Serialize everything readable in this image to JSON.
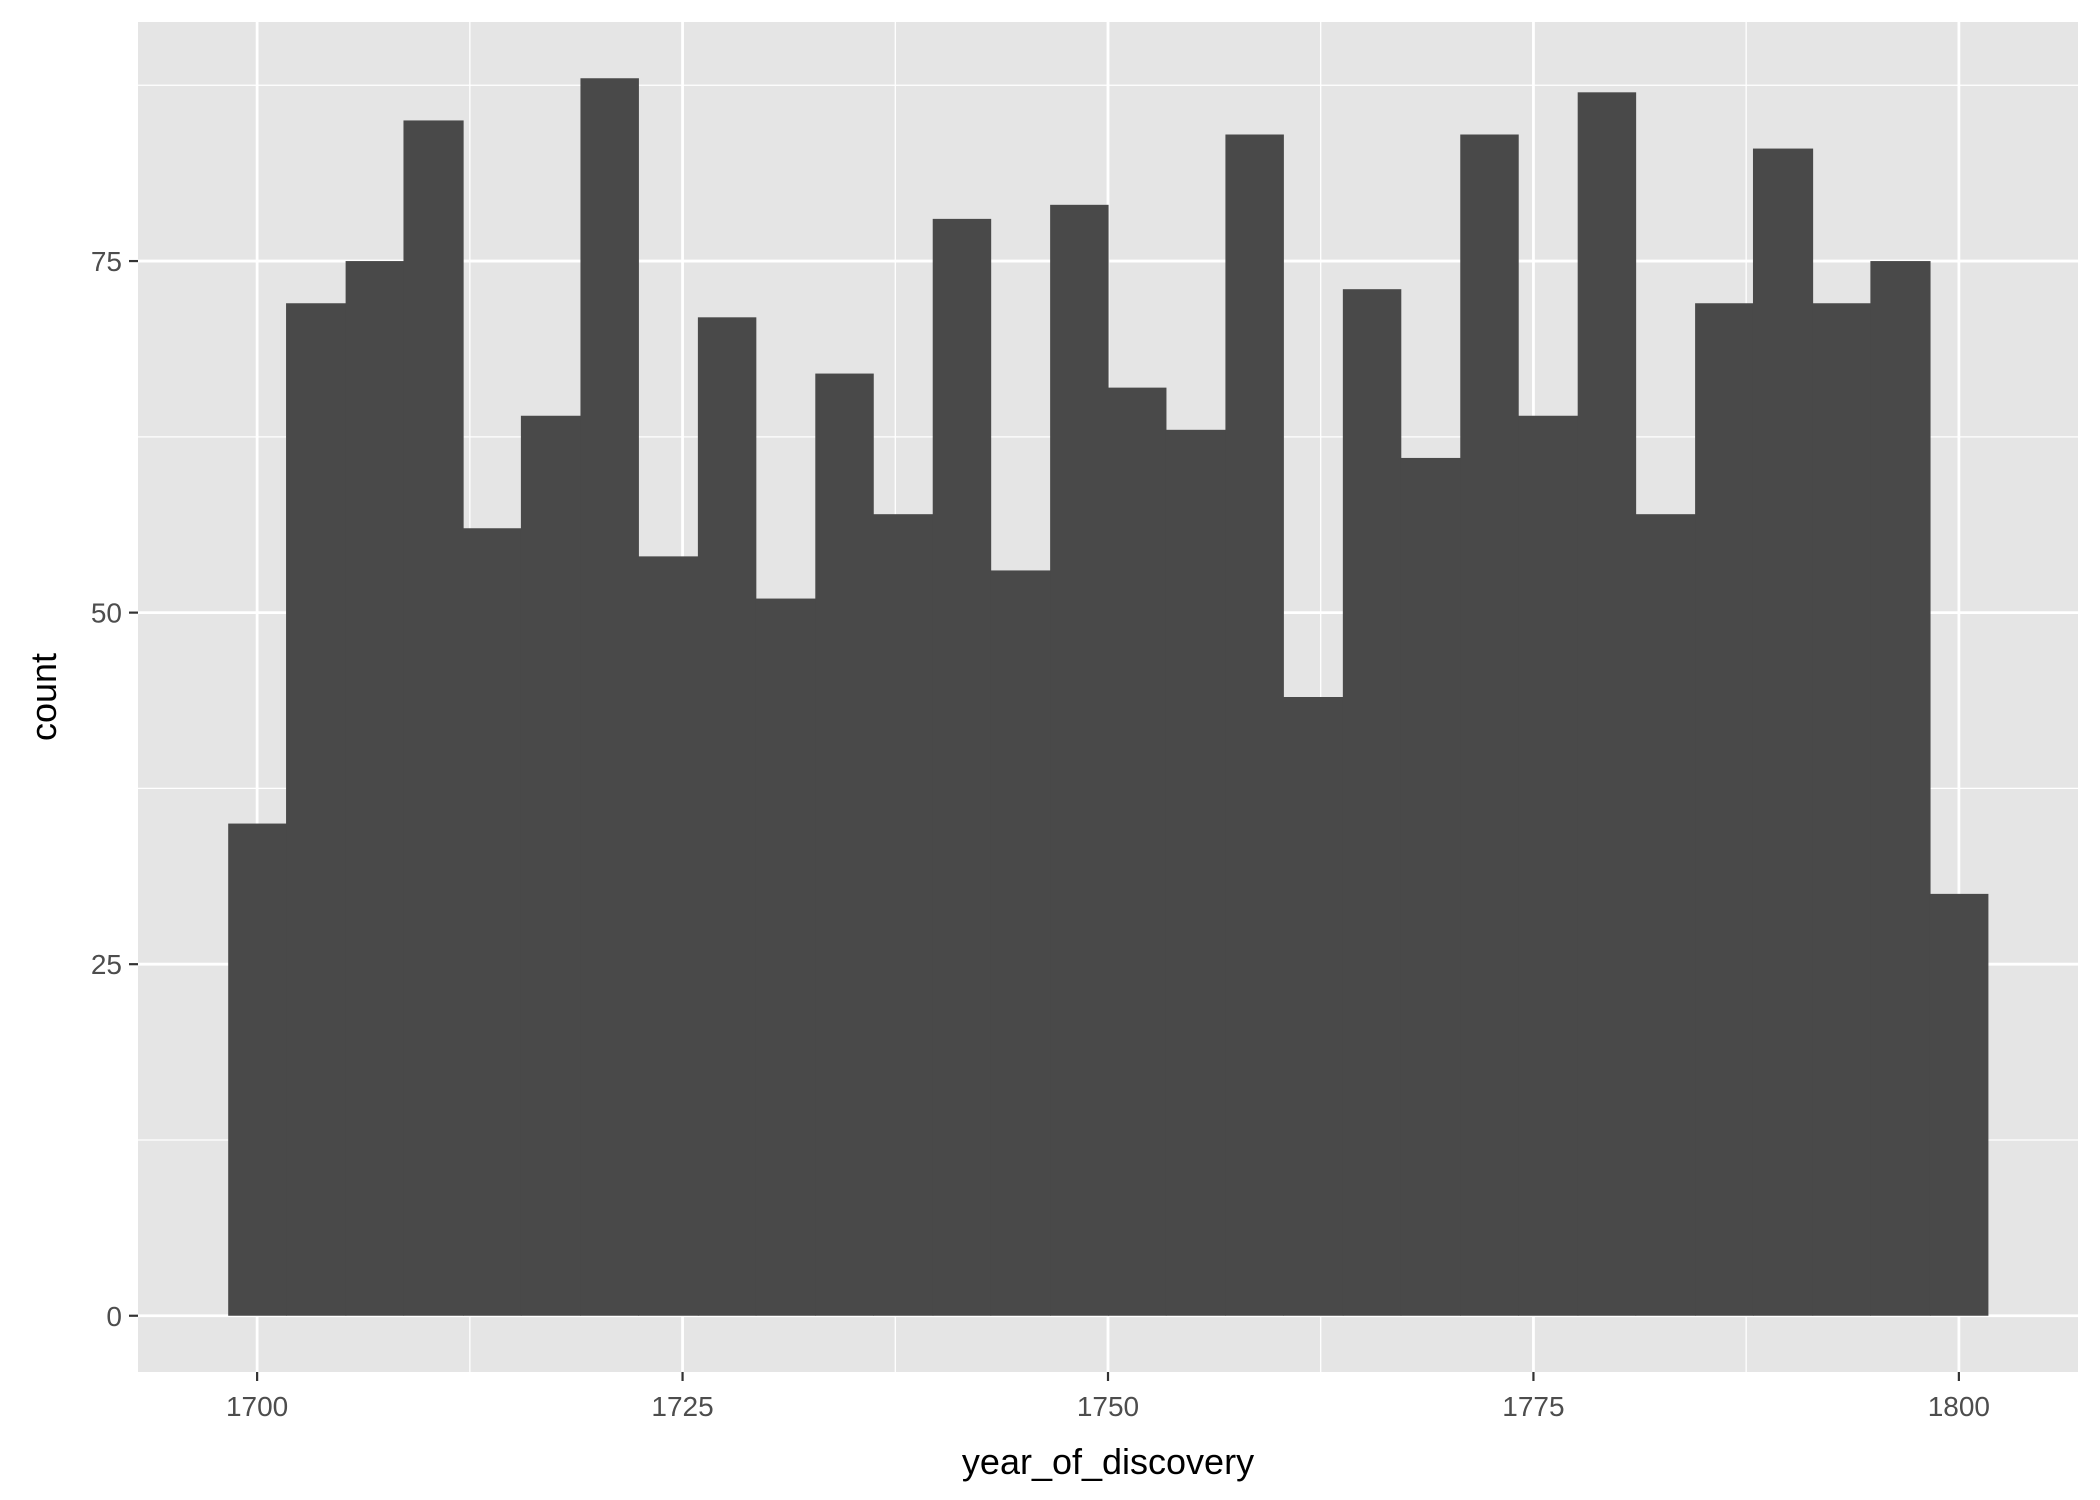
{
  "chart_data": {
    "type": "bar",
    "xlabel": "year_of_discovery",
    "ylabel": "count",
    "xlim": [
      1693,
      1807
    ],
    "ylim": [
      -4,
      92
    ],
    "x_ticks": [
      1700,
      1725,
      1750,
      1775,
      1800
    ],
    "y_ticks": [
      0,
      25,
      50,
      75
    ],
    "grid": true,
    "colors": {
      "panel": "#e5e5e5",
      "bar": "#494949",
      "grid": "#ffffff",
      "text": "#4d4d4d",
      "tick": "#333333"
    },
    "bins": [
      {
        "x0": 1698.3,
        "x1": 1701.7,
        "count": 35
      },
      {
        "x0": 1701.7,
        "x1": 1705.2,
        "count": 72
      },
      {
        "x0": 1705.2,
        "x1": 1708.6,
        "count": 75
      },
      {
        "x0": 1708.6,
        "x1": 1712.1,
        "count": 85
      },
      {
        "x0": 1712.1,
        "x1": 1715.5,
        "count": 56
      },
      {
        "x0": 1715.5,
        "x1": 1719.0,
        "count": 64
      },
      {
        "x0": 1719.0,
        "x1": 1722.4,
        "count": 88
      },
      {
        "x0": 1722.4,
        "x1": 1725.9,
        "count": 54
      },
      {
        "x0": 1725.9,
        "x1": 1729.3,
        "count": 71
      },
      {
        "x0": 1729.3,
        "x1": 1732.8,
        "count": 51
      },
      {
        "x0": 1732.8,
        "x1": 1736.2,
        "count": 67
      },
      {
        "x0": 1736.2,
        "x1": 1739.7,
        "count": 57
      },
      {
        "x0": 1739.7,
        "x1": 1743.1,
        "count": 78
      },
      {
        "x0": 1743.1,
        "x1": 1746.6,
        "count": 53
      },
      {
        "x0": 1746.6,
        "x1": 1750.0,
        "count": 79
      },
      {
        "x0": 1750.0,
        "x1": 1753.4,
        "count": 66
      },
      {
        "x0": 1753.4,
        "x1": 1756.9,
        "count": 63
      },
      {
        "x0": 1756.9,
        "x1": 1760.3,
        "count": 84
      },
      {
        "x0": 1760.3,
        "x1": 1763.8,
        "count": 44
      },
      {
        "x0": 1763.8,
        "x1": 1767.2,
        "count": 73
      },
      {
        "x0": 1767.2,
        "x1": 1770.7,
        "count": 61
      },
      {
        "x0": 1770.7,
        "x1": 1774.1,
        "count": 84
      },
      {
        "x0": 1774.1,
        "x1": 1777.6,
        "count": 64
      },
      {
        "x0": 1777.6,
        "x1": 1781.0,
        "count": 87
      },
      {
        "x0": 1781.0,
        "x1": 1784.5,
        "count": 57
      },
      {
        "x0": 1784.5,
        "x1": 1787.9,
        "count": 72
      },
      {
        "x0": 1787.9,
        "x1": 1791.4,
        "count": 83
      },
      {
        "x0": 1791.4,
        "x1": 1794.8,
        "count": 72
      },
      {
        "x0": 1794.8,
        "x1": 1798.3,
        "count": 75
      },
      {
        "x0": 1798.3,
        "x1": 1801.7,
        "count": 30
      }
    ]
  }
}
